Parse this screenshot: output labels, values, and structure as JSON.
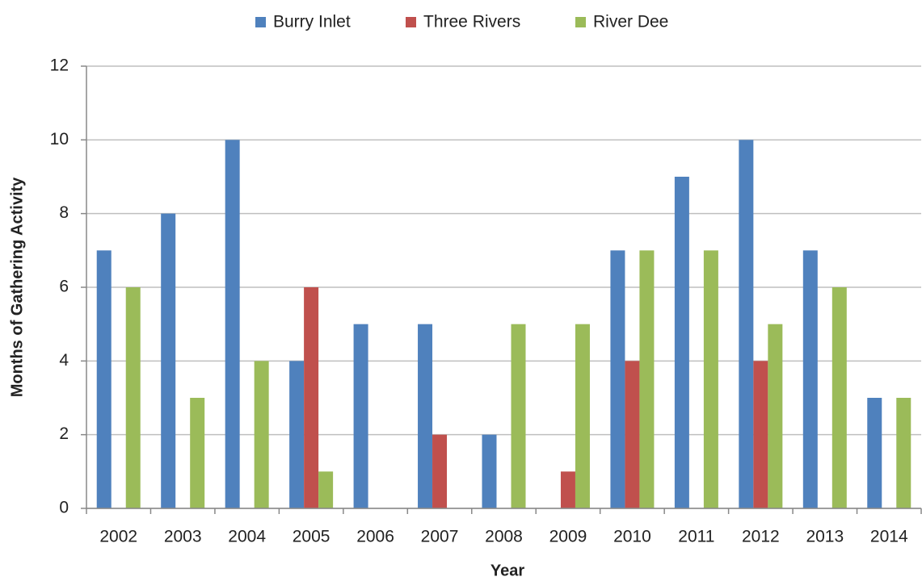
{
  "chart_data": {
    "type": "bar",
    "xlabel": "Year",
    "ylabel": "Months of Gathering Activity",
    "categories": [
      "2002",
      "2003",
      "2004",
      "2005",
      "2006",
      "2007",
      "2008",
      "2009",
      "2010",
      "2011",
      "2012",
      "2013",
      "2014"
    ],
    "series": [
      {
        "name": "Burry Inlet",
        "color": "#4f81bd",
        "values": [
          7,
          8,
          10,
          4,
          5,
          5,
          2,
          0,
          7,
          9,
          10,
          7,
          3
        ]
      },
      {
        "name": "Three Rivers",
        "color": "#c0504d",
        "values": [
          0,
          0,
          0,
          6,
          0,
          2,
          0,
          1,
          4,
          0,
          4,
          0,
          0
        ]
      },
      {
        "name": "River Dee",
        "color": "#9bbb59",
        "values": [
          6,
          3,
          4,
          1,
          0,
          0,
          5,
          5,
          7,
          7,
          5,
          6,
          3
        ]
      }
    ],
    "ylim": [
      0,
      12
    ],
    "yticks": [
      0,
      2,
      4,
      6,
      8,
      10,
      12
    ],
    "grid": true,
    "legend": "top"
  }
}
